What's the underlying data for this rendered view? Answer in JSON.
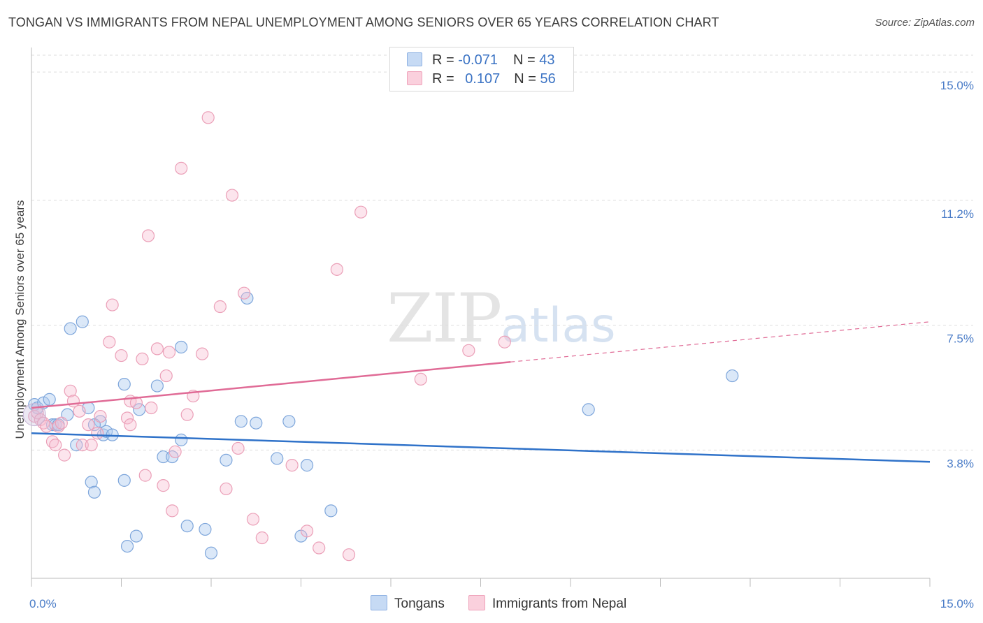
{
  "title": "TONGAN VS IMMIGRANTS FROM NEPAL UNEMPLOYMENT AMONG SENIORS OVER 65 YEARS CORRELATION CHART",
  "source": "Source: ZipAtlas.com",
  "watermark": {
    "zip": "ZIP",
    "atlas": "atlas"
  },
  "legend": {
    "rows": [
      {
        "r_label": "R = ",
        "r_value": "-0.071",
        "n_label": "N = ",
        "n_value": "43",
        "color": "#a9c7ee"
      },
      {
        "r_label": "R = ",
        "r_value": "0.107",
        "n_label": "N = ",
        "n_value": "56",
        "color": "#f5b8cb"
      }
    ]
  },
  "bottom_legend": [
    {
      "label": "Tongans",
      "color": "#a9c7ee"
    },
    {
      "label": "Immigrants from Nepal",
      "color": "#f5b8cb"
    }
  ],
  "chart_data": {
    "type": "scatter",
    "title": "TONGAN VS IMMIGRANTS FROM NEPAL UNEMPLOYMENT AMONG SENIORS OVER 65 YEARS CORRELATION CHART",
    "xlabel": "",
    "ylabel": "Unemployment Among Seniors over 65 years",
    "xlim": [
      0,
      15
    ],
    "ylim": [
      0,
      15.5
    ],
    "x_tick_labels": [
      "0.0%",
      "15.0%"
    ],
    "y_ticks": [
      3.8,
      7.5,
      11.2,
      15.0
    ],
    "y_tick_labels": [
      "3.8%",
      "7.5%",
      "11.2%",
      "15.0%"
    ],
    "grid": true,
    "series": [
      {
        "name": "Tongans",
        "color": "#a9c7ee",
        "line_color": "#2f72c9",
        "trend": {
          "x": [
            0,
            15
          ],
          "y": [
            4.3,
            3.45
          ],
          "dashed_from": null
        },
        "points": [
          [
            0.05,
            5.15
          ],
          [
            0.1,
            5.05
          ],
          [
            0.2,
            5.2
          ],
          [
            0.35,
            4.55
          ],
          [
            0.4,
            4.55
          ],
          [
            0.45,
            4.55
          ],
          [
            0.6,
            4.85
          ],
          [
            0.65,
            7.4
          ],
          [
            0.75,
            3.95
          ],
          [
            0.85,
            7.6
          ],
          [
            0.95,
            5.05
          ],
          [
            1.0,
            2.85
          ],
          [
            1.05,
            2.55
          ],
          [
            1.15,
            4.65
          ],
          [
            1.2,
            4.25
          ],
          [
            1.25,
            4.35
          ],
          [
            1.35,
            4.25
          ],
          [
            1.55,
            5.75
          ],
          [
            1.55,
            2.9
          ],
          [
            1.6,
            0.95
          ],
          [
            1.75,
            1.25
          ],
          [
            1.8,
            5.0
          ],
          [
            2.1,
            5.7
          ],
          [
            2.2,
            3.6
          ],
          [
            2.35,
            3.6
          ],
          [
            2.5,
            4.1
          ],
          [
            2.5,
            6.85
          ],
          [
            2.6,
            1.55
          ],
          [
            2.9,
            1.45
          ],
          [
            3.0,
            0.75
          ],
          [
            3.25,
            3.5
          ],
          [
            3.5,
            4.65
          ],
          [
            3.6,
            8.3
          ],
          [
            3.75,
            4.6
          ],
          [
            4.1,
            3.55
          ],
          [
            4.3,
            4.65
          ],
          [
            4.5,
            1.25
          ],
          [
            4.6,
            3.35
          ],
          [
            5.0,
            2.0
          ],
          [
            9.3,
            5.0
          ],
          [
            11.7,
            6.0
          ],
          [
            0.3,
            5.3
          ],
          [
            1.05,
            4.55
          ]
        ]
      },
      {
        "name": "Immigrants from Nepal",
        "color": "#f5b8cb",
        "line_color": "#e06b96",
        "trend": {
          "x": [
            0,
            15
          ],
          "y": [
            5.05,
            7.6
          ],
          "dashed_from": 8.0
        },
        "points": [
          [
            0.05,
            4.8
          ],
          [
            0.1,
            4.9
          ],
          [
            0.15,
            4.7
          ],
          [
            0.2,
            4.6
          ],
          [
            0.25,
            4.5
          ],
          [
            0.35,
            4.05
          ],
          [
            0.4,
            3.95
          ],
          [
            0.45,
            4.5
          ],
          [
            0.5,
            4.6
          ],
          [
            0.55,
            3.65
          ],
          [
            0.65,
            5.55
          ],
          [
            0.7,
            5.25
          ],
          [
            0.8,
            4.95
          ],
          [
            0.85,
            3.95
          ],
          [
            0.95,
            4.55
          ],
          [
            1.0,
            3.95
          ],
          [
            1.1,
            4.3
          ],
          [
            1.15,
            4.8
          ],
          [
            1.3,
            7.0
          ],
          [
            1.35,
            8.1
          ],
          [
            1.5,
            6.6
          ],
          [
            1.6,
            4.75
          ],
          [
            1.65,
            5.25
          ],
          [
            1.75,
            5.2
          ],
          [
            1.85,
            6.5
          ],
          [
            1.9,
            3.05
          ],
          [
            1.95,
            10.15
          ],
          [
            2.0,
            5.05
          ],
          [
            2.1,
            6.8
          ],
          [
            2.2,
            2.75
          ],
          [
            2.25,
            6.0
          ],
          [
            2.3,
            6.7
          ],
          [
            2.35,
            2.0
          ],
          [
            2.4,
            3.75
          ],
          [
            2.5,
            12.15
          ],
          [
            2.6,
            4.85
          ],
          [
            2.7,
            5.4
          ],
          [
            2.85,
            6.65
          ],
          [
            2.95,
            13.65
          ],
          [
            3.15,
            8.05
          ],
          [
            3.25,
            2.65
          ],
          [
            3.35,
            11.35
          ],
          [
            3.45,
            3.85
          ],
          [
            3.55,
            8.45
          ],
          [
            3.7,
            1.75
          ],
          [
            3.85,
            1.2
          ],
          [
            4.35,
            3.35
          ],
          [
            4.6,
            1.4
          ],
          [
            4.8,
            0.9
          ],
          [
            5.1,
            9.15
          ],
          [
            5.3,
            0.7
          ],
          [
            5.5,
            10.85
          ],
          [
            6.5,
            5.9
          ],
          [
            7.3,
            6.75
          ],
          [
            7.9,
            7.0
          ],
          [
            1.65,
            4.55
          ]
        ]
      }
    ]
  }
}
